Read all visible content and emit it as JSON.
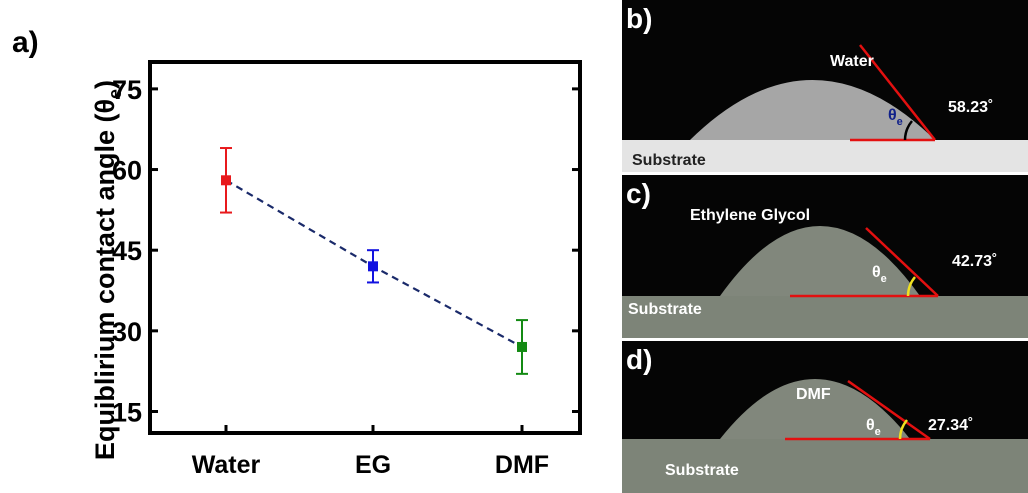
{
  "chart_data": {
    "type": "errorbar",
    "panel_label": "a)",
    "y_label": "Equiblirium contact angle (θ",
    "y_label_sub": "e",
    "y_label_close": ")",
    "categories": [
      "Water",
      "EG",
      "DMF"
    ],
    "values": [
      58,
      42,
      27
    ],
    "errors": [
      6,
      3,
      5
    ],
    "colors": [
      "#e8191c",
      "#1212e0",
      "#138a13"
    ],
    "line_color": "#1a2a6a",
    "ylim": [
      11,
      80
    ],
    "yticks": [
      15,
      30,
      45,
      60,
      75
    ]
  },
  "panels": [
    {
      "label": "b)",
      "liquid": "Water",
      "theta": "θ",
      "theta_sub": "e",
      "angle": "58.23˚",
      "substrate": "Substrate"
    },
    {
      "label": "c)",
      "liquid": "Ethylene Glycol",
      "theta": "θ",
      "theta_sub": "e",
      "angle": "42.73˚",
      "substrate": "Substrate"
    },
    {
      "label": "d)",
      "liquid": "DMF",
      "theta": "θ",
      "theta_sub": "e",
      "angle": "27.34˚",
      "substrate": "Substrate"
    }
  ]
}
